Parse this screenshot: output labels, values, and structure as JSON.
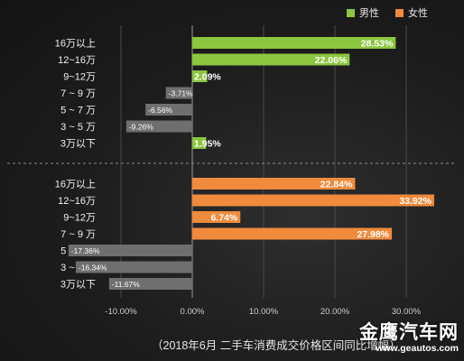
{
  "legend": {
    "male": "男性",
    "female": "女性"
  },
  "colors": {
    "male": "#8cc63f",
    "female": "#f08a3c",
    "negative": "#6f6f6f"
  },
  "caption": "（2018年6月 二手车消费成交价格区间同比增幅）",
  "watermark": {
    "brand": "金鹰汽车网",
    "url": "www.geautos.com"
  },
  "chart_data": {
    "type": "bar",
    "orientation": "horizontal",
    "x_ticks": [
      "-10.00%",
      "0.00%",
      "10.00%",
      "20.00%",
      "30.00%"
    ],
    "xlim": [
      -20,
      40
    ],
    "grid": true,
    "groups": [
      {
        "name": "男性",
        "categories": [
          "16万以上",
          "12~16万",
          "9~12万",
          "7 ~ 9 万",
          "5 ~ 7 万",
          "3 ~ 5 万",
          "3万以下"
        ],
        "values": [
          28.53,
          22.06,
          2.09,
          -3.71,
          -6.56,
          -9.26,
          1.95
        ],
        "labels": [
          "28.53%",
          "22.06%",
          "2.09%",
          "-3.71%",
          "-6.56%",
          "-9.26%",
          "1.95%"
        ]
      },
      {
        "name": "女性",
        "categories": [
          "16万以上",
          "12~16万",
          "9~12万",
          "7 ~ 9 万",
          "5 ~ 7 万",
          "3 ~ 5 万",
          "3万以下"
        ],
        "values": [
          22.84,
          33.92,
          6.74,
          27.98,
          -17.36,
          -16.34,
          -11.67
        ],
        "labels": [
          "22.84%",
          "33.92%",
          "6.74%",
          "27.98%",
          "-17.36%",
          "-16.34%",
          "-11.67%"
        ]
      }
    ]
  }
}
